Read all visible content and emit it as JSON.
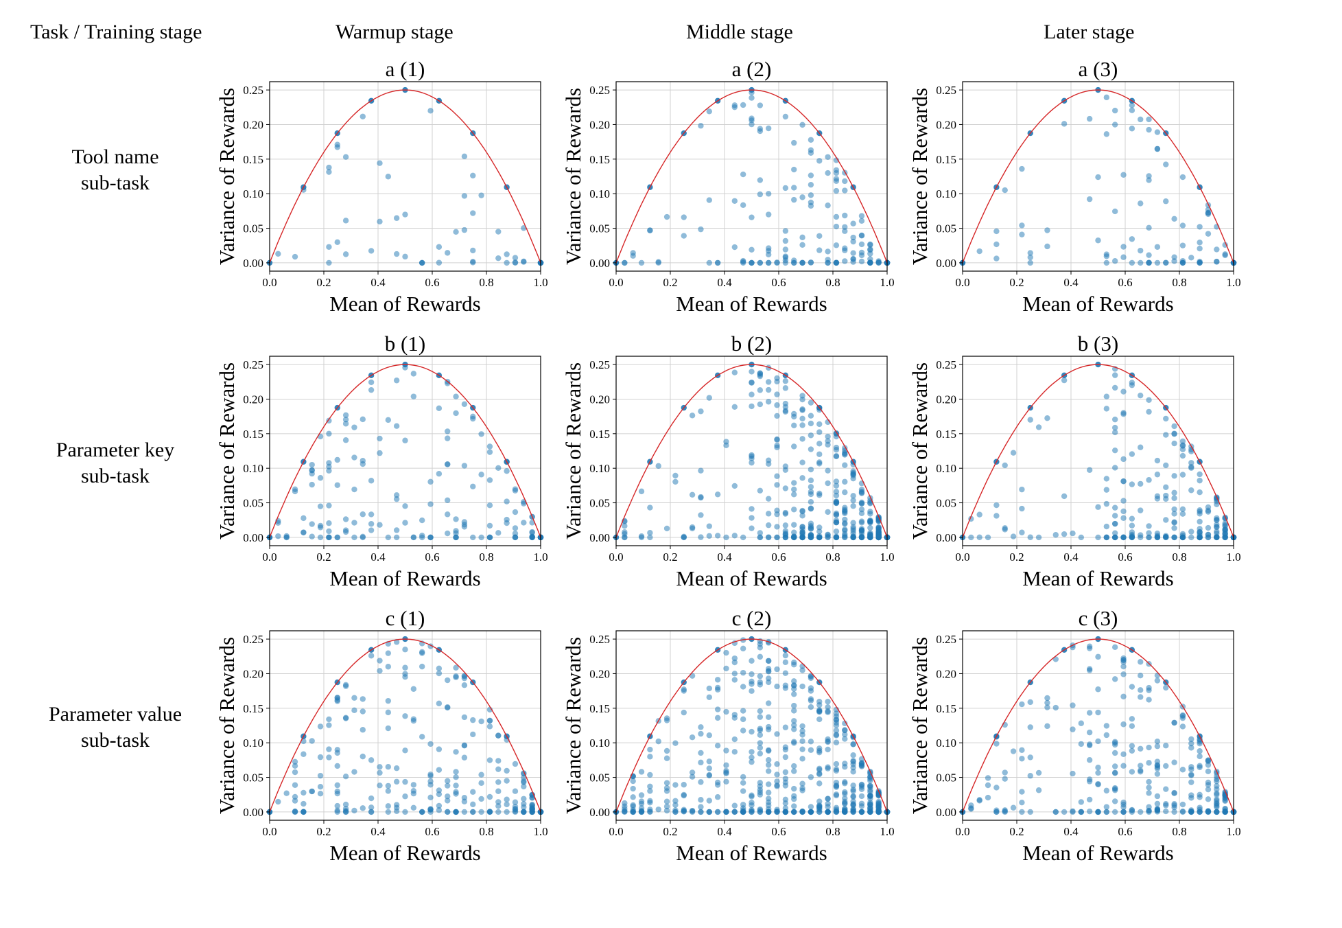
{
  "header": {
    "corner": "Task / Training stage",
    "columns": [
      "Warmup stage",
      "Middle stage",
      "Later stage"
    ]
  },
  "rows": [
    {
      "line1": "Tool name",
      "line2": "sub-task"
    },
    {
      "line1": "Parameter key",
      "line2": "sub-task"
    },
    {
      "line1": "Parameter value",
      "line2": "sub-task"
    }
  ],
  "colors": {
    "points": "#1f77b4",
    "curve": "#d62728",
    "grid": "#d0d0d0",
    "frame": "#000000"
  },
  "chart_data": [
    {
      "type": "scatter",
      "title": "a (1)",
      "xlabel": "Mean of Rewards",
      "ylabel": "Variance of Rewards",
      "xlim": [
        0,
        1
      ],
      "ylim": [
        0,
        0.25
      ],
      "xticks": [
        "0.0",
        "0.2",
        "0.4",
        "0.6",
        "0.8",
        "1.0"
      ],
      "yticks": [
        "0.00",
        "0.05",
        "0.10",
        "0.15",
        "0.20",
        "0.25"
      ],
      "grid": true,
      "curve": "y = x(1 - x)",
      "density": 55,
      "seed": 11,
      "bias": 0.5
    },
    {
      "type": "scatter",
      "title": "a (2)",
      "xlabel": "Mean of Rewards",
      "ylabel": "Variance of Rewards",
      "xlim": [
        0,
        1
      ],
      "ylim": [
        0,
        0.25
      ],
      "xticks": [
        "0.0",
        "0.2",
        "0.4",
        "0.6",
        "0.8",
        "1.0"
      ],
      "yticks": [
        "0.00",
        "0.05",
        "0.10",
        "0.15",
        "0.20",
        "0.25"
      ],
      "grid": true,
      "curve": "y = x(1 - x)",
      "density": 170,
      "seed": 23,
      "bias": 0.68
    },
    {
      "type": "scatter",
      "title": "a (3)",
      "xlabel": "Mean of Rewards",
      "ylabel": "Variance of Rewards",
      "xlim": [
        0,
        1
      ],
      "ylim": [
        0,
        0.25
      ],
      "xticks": [
        "0.0",
        "0.2",
        "0.4",
        "0.6",
        "0.8",
        "1.0"
      ],
      "yticks": [
        "0.00",
        "0.05",
        "0.10",
        "0.15",
        "0.20",
        "0.25"
      ],
      "grid": true,
      "curve": "y = x(1 - x)",
      "density": 95,
      "seed": 37,
      "bias": 0.75
    },
    {
      "type": "scatter",
      "title": "b (1)",
      "xlabel": "Mean of Rewards",
      "ylabel": "Variance of Rewards",
      "xlim": [
        0,
        1
      ],
      "ylim": [
        0,
        0.25
      ],
      "xticks": [
        "0.0",
        "0.2",
        "0.4",
        "0.6",
        "0.8",
        "1.0"
      ],
      "yticks": [
        "0.00",
        "0.05",
        "0.10",
        "0.15",
        "0.20",
        "0.25"
      ],
      "grid": true,
      "curve": "y = x(1 - x)",
      "density": 170,
      "seed": 41,
      "bias": 0.45
    },
    {
      "type": "scatter",
      "title": "b (2)",
      "xlabel": "Mean of Rewards",
      "ylabel": "Variance of Rewards",
      "xlim": [
        0,
        1
      ],
      "ylim": [
        0,
        0.25
      ],
      "xticks": [
        "0.0",
        "0.2",
        "0.4",
        "0.6",
        "0.8",
        "1.0"
      ],
      "yticks": [
        "0.00",
        "0.05",
        "0.10",
        "0.15",
        "0.20",
        "0.25"
      ],
      "grid": true,
      "curve": "y = x(1 - x)",
      "density": 420,
      "seed": 53,
      "bias": 0.78
    },
    {
      "type": "scatter",
      "title": "b (3)",
      "xlabel": "Mean of Rewards",
      "ylabel": "Variance of Rewards",
      "xlim": [
        0,
        1
      ],
      "ylim": [
        0,
        0.25
      ],
      "xticks": [
        "0.0",
        "0.2",
        "0.4",
        "0.6",
        "0.8",
        "1.0"
      ],
      "yticks": [
        "0.00",
        "0.05",
        "0.10",
        "0.15",
        "0.20",
        "0.25"
      ],
      "grid": true,
      "curve": "y = x(1 - x)",
      "density": 240,
      "seed": 67,
      "bias": 0.82
    },
    {
      "type": "scatter",
      "title": "c (1)",
      "xlabel": "Mean of Rewards",
      "ylabel": "Variance of Rewards",
      "xlim": [
        0,
        1
      ],
      "ylim": [
        0,
        0.25
      ],
      "xticks": [
        "0.0",
        "0.2",
        "0.4",
        "0.6",
        "0.8",
        "1.0"
      ],
      "yticks": [
        "0.00",
        "0.05",
        "0.10",
        "0.15",
        "0.20",
        "0.25"
      ],
      "grid": true,
      "curve": "y = x(1 - x)",
      "density": 260,
      "seed": 71,
      "bias": 0.4
    },
    {
      "type": "scatter",
      "title": "c (2)",
      "xlabel": "Mean of Rewards",
      "ylabel": "Variance of Rewards",
      "xlim": [
        0,
        1
      ],
      "ylim": [
        0,
        0.25
      ],
      "xticks": [
        "0.0",
        "0.2",
        "0.4",
        "0.6",
        "0.8",
        "1.0"
      ],
      "yticks": [
        "0.00",
        "0.05",
        "0.10",
        "0.15",
        "0.20",
        "0.25"
      ],
      "grid": true,
      "curve": "y = x(1 - x)",
      "density": 560,
      "seed": 83,
      "bias": 0.6
    },
    {
      "type": "scatter",
      "title": "c (3)",
      "xlabel": "Mean of Rewards",
      "ylabel": "Variance of Rewards",
      "xlim": [
        0,
        1
      ],
      "ylim": [
        0,
        0.25
      ],
      "xticks": [
        "0.0",
        "0.2",
        "0.4",
        "0.6",
        "0.8",
        "1.0"
      ],
      "yticks": [
        "0.00",
        "0.05",
        "0.10",
        "0.15",
        "0.20",
        "0.25"
      ],
      "grid": true,
      "curve": "y = x(1 - x)",
      "density": 300,
      "seed": 97,
      "bias": 0.7
    }
  ]
}
